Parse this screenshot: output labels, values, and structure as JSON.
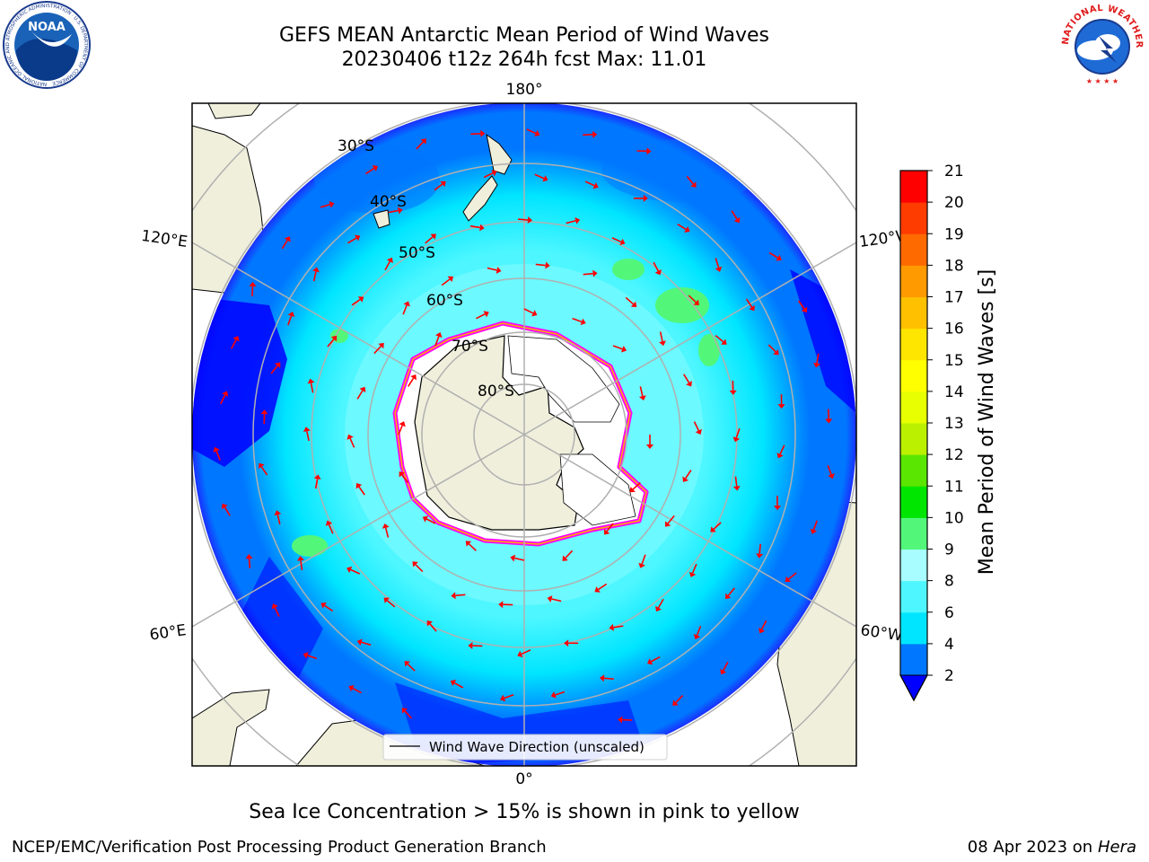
{
  "header": {
    "title_line1": "GEFS MEAN Antarctic Mean Period of Wind Waves",
    "title_line2": "20230406 t12z 264h fcst   Max: 11.01"
  },
  "logos": {
    "left": {
      "name": "noaa-logo",
      "text": "NOAA",
      "ring_text": "NATIONAL OCEANIC AND ATMOSPHERIC ADMINISTRATION · U.S. DEPARTMENT OF COMMERCE"
    },
    "right": {
      "name": "nws-logo",
      "ring_text": "NATIONAL WEATHER SERVICE"
    }
  },
  "map": {
    "projection": "south-polar-stereographic",
    "lon_labels": [
      "180°",
      "120°E",
      "120°W",
      "60°E",
      "60°W",
      "0°"
    ],
    "lat_labels": [
      "30°S",
      "40°S",
      "50°S",
      "60°S",
      "70°S",
      "80°S"
    ],
    "colors": {
      "land": "#efefdc",
      "ice": "#ffffff",
      "arrow": "#ff0000",
      "grid": "#b0b0b0"
    },
    "legend_label": "Wind Wave Direction (unscaled)"
  },
  "colorbar": {
    "label": "Mean Period of Wind Waves [s]",
    "ticks": [
      "2",
      "4",
      "6",
      "8",
      "9",
      "10",
      "11",
      "12",
      "13",
      "14",
      "15",
      "16",
      "17",
      "18",
      "19",
      "20",
      "21"
    ],
    "colors": [
      "#0077ff",
      "#00e5ff",
      "#4ef7ff",
      "#a7fdff",
      "#52f77a",
      "#00e600",
      "#5ae600",
      "#bbf000",
      "#e7ff00",
      "#ffff00",
      "#ffe600",
      "#ffc000",
      "#ff9a00",
      "#ff6a00",
      "#ff3c00",
      "#ff0000"
    ],
    "under_color": "#0000ff"
  },
  "footer": {
    "note": "Sea Ice Concentration > 15% is shown in pink to yellow",
    "left": "NCEP/EMC/Verification Post Processing Product Generation Branch",
    "right_date": "08 Apr 2023 on",
    "right_machine": "Hera"
  }
}
